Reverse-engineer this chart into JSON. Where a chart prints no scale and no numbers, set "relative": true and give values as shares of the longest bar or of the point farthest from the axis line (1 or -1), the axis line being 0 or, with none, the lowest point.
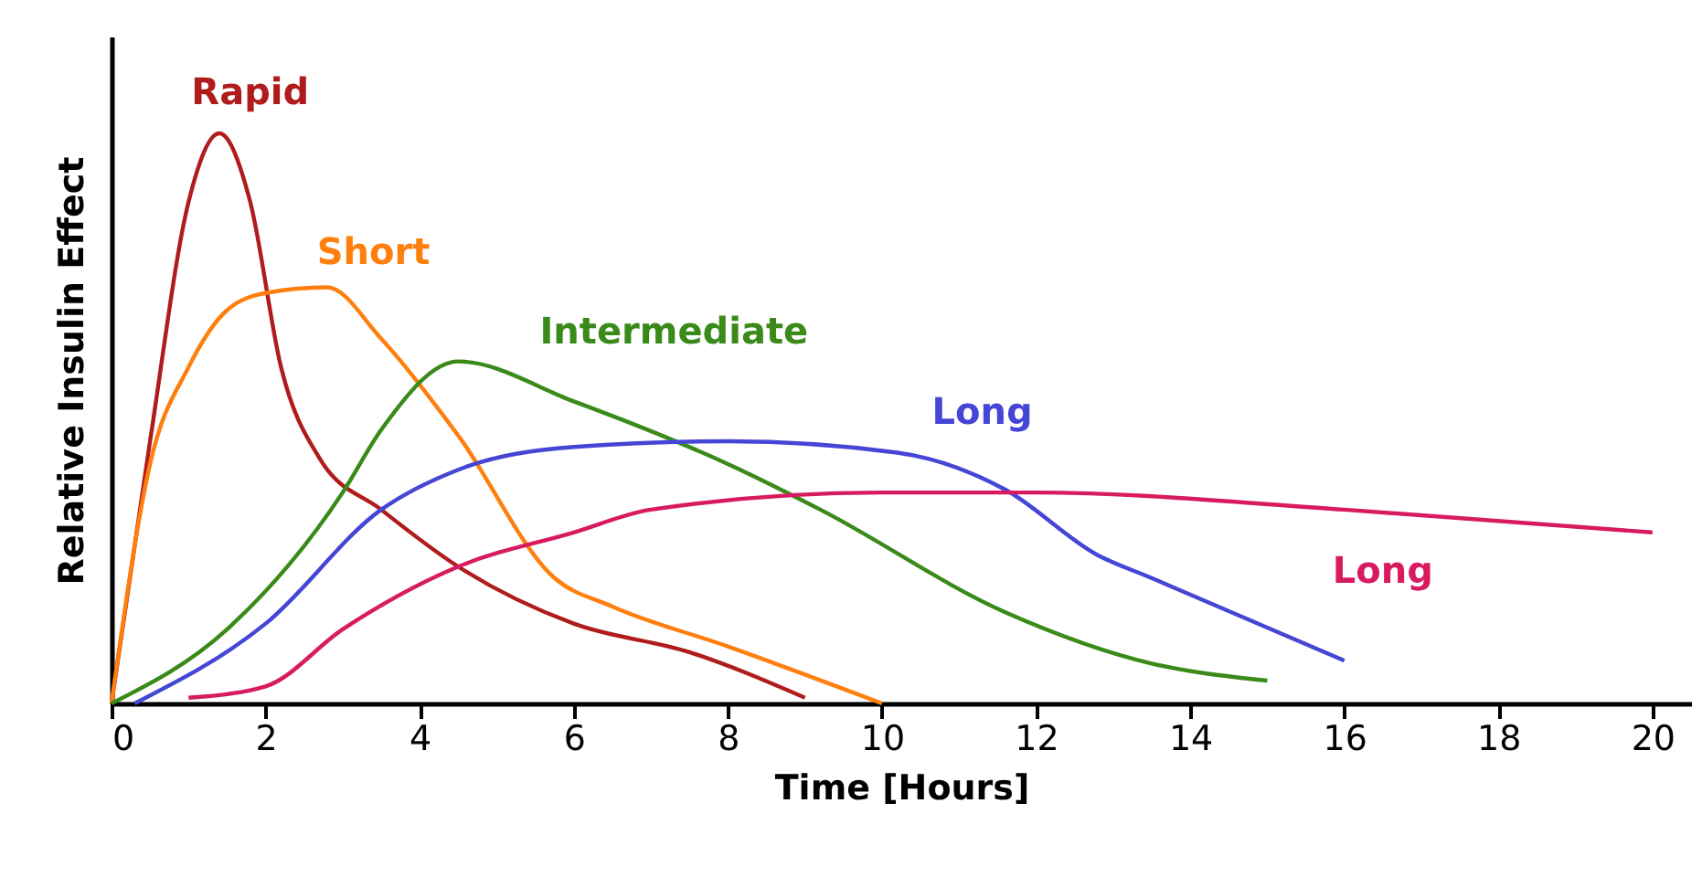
{
  "chart_data": {
    "type": "line",
    "xlabel": "Time [Hours]",
    "ylabel": "Relative Insulin Effect",
    "relative": true,
    "xlim": [
      0,
      20.5
    ],
    "xticks": [
      0,
      2,
      4,
      6,
      8,
      10,
      12,
      14,
      16,
      18,
      20
    ],
    "grid": false,
    "legend": false,
    "marker": "none",
    "line_style": "solid",
    "series": [
      {
        "name": "Rapid",
        "color": "#b01c1c",
        "x": [
          0,
          0.5,
          1,
          1.4,
          1.8,
          2.2,
          2.7,
          3.5,
          4.5,
          6,
          7.5,
          9
        ],
        "values": [
          0,
          0.46,
          0.88,
          1,
          0.88,
          0.59,
          0.43,
          0.34,
          0.24,
          0.14,
          0.09,
          0.01
        ]
      },
      {
        "name": "Short",
        "color": "#ff7f0e",
        "x": [
          0,
          0.5,
          1,
          1.5,
          2,
          2.8,
          3.5,
          4.5,
          5.75,
          6.5,
          8,
          10
        ],
        "values": [
          0,
          0.42,
          0.59,
          0.69,
          0.72,
          0.73,
          0.64,
          0.47,
          0.22,
          0.17,
          0.1,
          0
        ]
      },
      {
        "name": "Intermediate",
        "color": "#3a8a1a",
        "x": [
          0,
          1.5,
          3,
          3.5,
          4.5,
          6,
          8,
          9.2,
          11.6,
          13.5,
          15
        ],
        "values": [
          0,
          0.13,
          0.37,
          0.48,
          0.6,
          0.53,
          0.42,
          0.34,
          0.16,
          0.07,
          0.04
        ]
      },
      {
        "name": "Long",
        "color": "#4545d6",
        "x": [
          0.3,
          2,
          3.5,
          4.5,
          6,
          8,
          10.2,
          11.6,
          12.8,
          13.5,
          16
        ],
        "values": [
          0,
          0.14,
          0.34,
          0.41,
          0.45,
          0.46,
          0.44,
          0.375,
          0.26,
          0.22,
          0.075
        ]
      },
      {
        "name": "Long",
        "color": "#d81b60",
        "x": [
          1,
          2,
          3,
          4.5,
          6,
          7,
          10,
          12,
          16,
          20
        ],
        "values": [
          0.01,
          0.03,
          0.13,
          0.24,
          0.3,
          0.34,
          0.37,
          0.37,
          0.34,
          0.3
        ]
      }
    ]
  }
}
